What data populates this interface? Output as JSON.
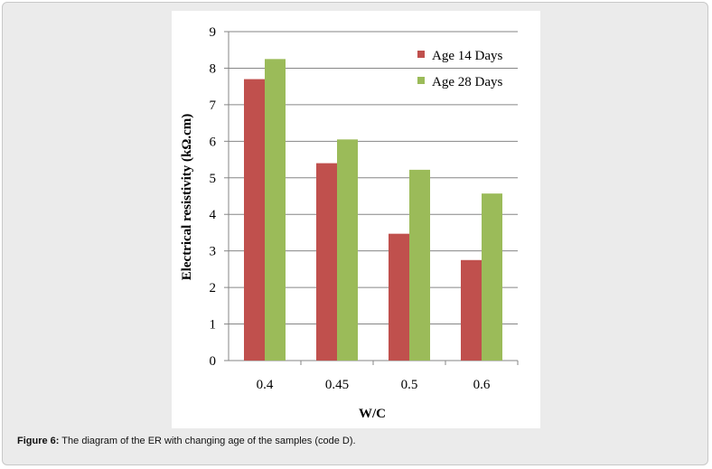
{
  "chart_data": {
    "type": "bar",
    "categories": [
      "0.4",
      "0.45",
      "0.5",
      "0.6"
    ],
    "series": [
      {
        "name": "Age 14 Days",
        "values": [
          7.7,
          5.4,
          3.47,
          2.75
        ],
        "color": "#c0504d"
      },
      {
        "name": "Age 28 Days",
        "values": [
          8.25,
          6.05,
          5.22,
          4.57
        ],
        "color": "#9bbb59"
      }
    ],
    "title": "",
    "xlabel": "W/C",
    "ylabel": "Electrical resistivity (kΩ.cm)",
    "ylim": [
      0,
      9
    ],
    "yticks": [
      "0",
      "1",
      "2",
      "3",
      "4",
      "5",
      "6",
      "7",
      "8",
      "9"
    ],
    "grid": true,
    "legend_position": "top-right"
  },
  "caption": {
    "label": "Figure 6:",
    "text": " The diagram of the ER with changing age of the samples (code D)."
  }
}
